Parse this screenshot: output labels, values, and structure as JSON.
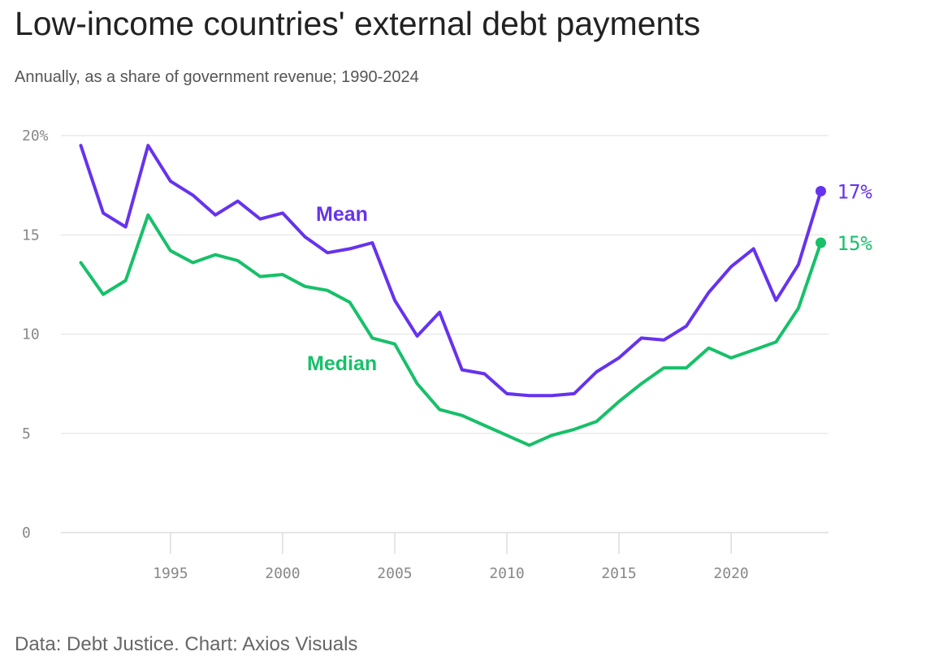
{
  "chart_data": {
    "type": "line",
    "title": "Low-income countries' external debt payments",
    "subtitle": "Annually, as a share of government revenue; 1990-2024",
    "source": "Data: Debt Justice. Chart: Axios Visuals",
    "ylim": [
      0,
      20
    ],
    "xlim": [
      1990,
      2024
    ],
    "y_ticks": [
      0,
      5,
      10,
      15,
      20
    ],
    "y_tick_labels": [
      "0",
      "5",
      "10",
      "15",
      "20%"
    ],
    "x_ticks": [
      1995,
      2000,
      2005,
      2010,
      2015,
      2020
    ],
    "x_tick_labels": [
      "1995",
      "2000",
      "2005",
      "2010",
      "2015",
      "2020"
    ],
    "grid": true,
    "legend": "inline",
    "x": [
      1991,
      1992,
      1993,
      1994,
      1995,
      1996,
      1997,
      1998,
      1999,
      2000,
      2001,
      2002,
      2003,
      2004,
      2005,
      2006,
      2007,
      2008,
      2009,
      2010,
      2011,
      2012,
      2013,
      2014,
      2015,
      2016,
      2017,
      2018,
      2019,
      2020,
      2021,
      2022,
      2023,
      2024
    ],
    "series": [
      {
        "name": "Mean",
        "color": "#6633ee",
        "end_label": "17%",
        "values": [
          19.5,
          16.1,
          15.4,
          19.5,
          17.7,
          17.0,
          16.0,
          16.7,
          15.8,
          16.1,
          14.9,
          14.1,
          14.3,
          14.6,
          11.7,
          9.9,
          11.1,
          8.2,
          8.0,
          7.0,
          6.9,
          6.9,
          7.0,
          8.1,
          8.8,
          9.8,
          9.7,
          10.4,
          12.1,
          13.4,
          14.3,
          11.7,
          13.5,
          17.2
        ]
      },
      {
        "name": "Median",
        "color": "#17c069",
        "end_label": "15%",
        "values": [
          13.6,
          12.0,
          12.7,
          16.0,
          14.2,
          13.6,
          14.0,
          13.7,
          12.9,
          13.0,
          12.4,
          12.2,
          11.6,
          9.8,
          9.5,
          7.5,
          6.2,
          5.9,
          5.4,
          4.9,
          4.4,
          4.9,
          5.2,
          5.6,
          6.6,
          7.5,
          8.3,
          8.3,
          9.3,
          8.8,
          9.2,
          9.6,
          11.3,
          14.6
        ]
      }
    ]
  }
}
